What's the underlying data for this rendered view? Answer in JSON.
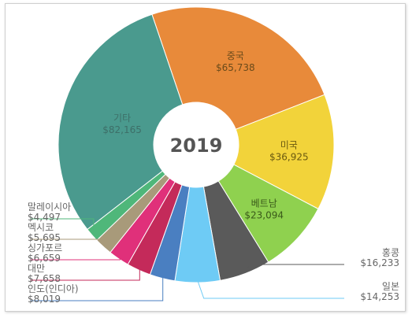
{
  "chart_data": {
    "type": "pie",
    "variant": "donut",
    "title": "2019",
    "categories": [
      "중국",
      "미국",
      "베트남",
      "홍콩",
      "일본",
      "인도(인디아)",
      "대만",
      "싱가포르",
      "멕시코",
      "말레이시아",
      "기타"
    ],
    "values": [
      65738,
      36925,
      23094,
      16233,
      14253,
      8019,
      7658,
      6659,
      5695,
      4497,
      82165
    ],
    "value_labels": [
      "$65,738",
      "$36,925",
      "$23,094",
      "$16,233",
      "$14,253",
      "$8,019",
      "$7,658",
      "$6,659",
      "$5,695",
      "$4,497",
      "$82,165"
    ],
    "colors": [
      "#e88a3a",
      "#f2d33a",
      "#8fd14f",
      "#5a5a5a",
      "#6ecbf5",
      "#4a7fc1",
      "#c42a5a",
      "#e0307a",
      "#a89a7a",
      "#4fb77a",
      "#4a9a8e"
    ],
    "legend": "none"
  }
}
